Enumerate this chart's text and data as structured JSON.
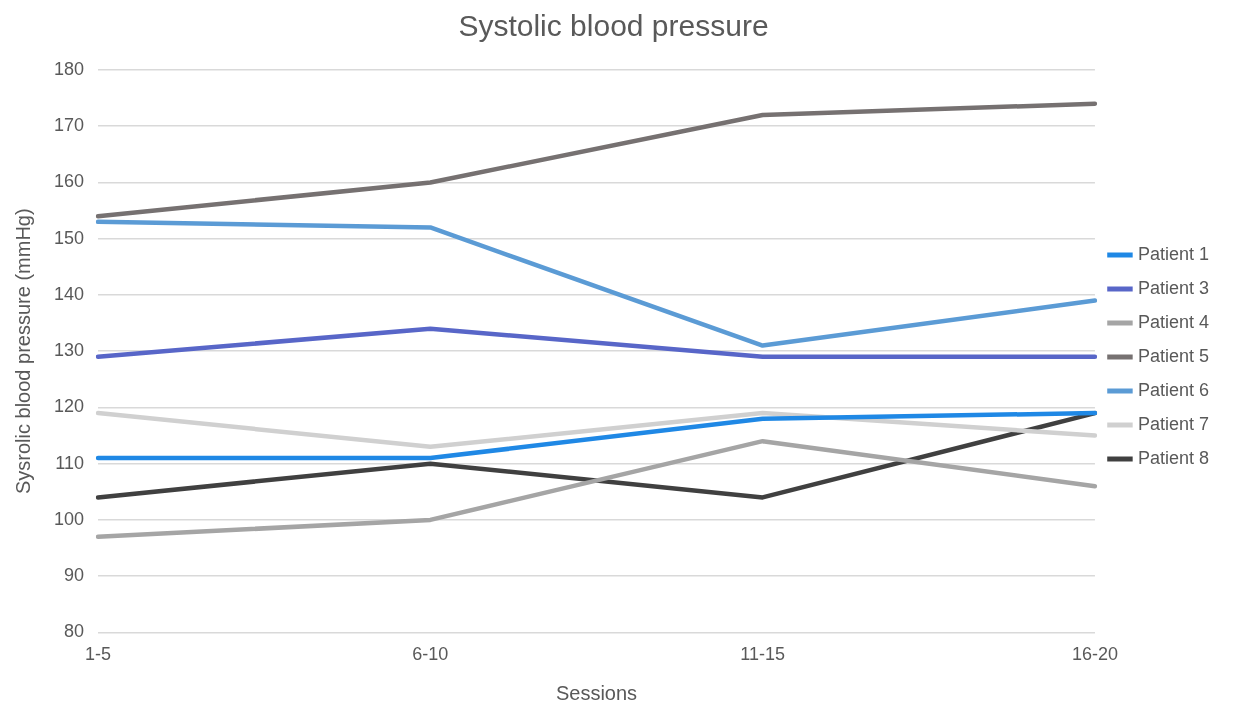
{
  "chart_data": {
    "type": "line",
    "title": "Systolic blood pressure",
    "xlabel": "Sessions",
    "ylabel": "Sysrolic blood pressure (mmHg)",
    "categories": [
      "1-5",
      "6-10",
      "11-15",
      "16-20"
    ],
    "series": [
      {
        "name": "Patient 1",
        "color": "#1f88e5",
        "values": [
          111,
          111,
          118,
          119
        ]
      },
      {
        "name": "Patient 3",
        "color": "#5866c8",
        "values": [
          129,
          134,
          129,
          129
        ]
      },
      {
        "name": "Patient 4",
        "color": "#a5a5a5",
        "values": [
          97,
          100,
          114,
          106
        ]
      },
      {
        "name": "Patient 5",
        "color": "#767171",
        "values": [
          154,
          160,
          172,
          174
        ]
      },
      {
        "name": "Patient 6",
        "color": "#5b9bd5",
        "values": [
          153,
          152,
          131,
          139
        ]
      },
      {
        "name": "Patient 7",
        "color": "#d0d0d0",
        "values": [
          119,
          113,
          119,
          115
        ]
      },
      {
        "name": "Patient 8",
        "color": "#404040",
        "values": [
          104,
          110,
          104,
          119
        ]
      }
    ],
    "ylim": [
      80,
      180
    ],
    "yticks": [
      80,
      90,
      100,
      110,
      120,
      130,
      140,
      150,
      160,
      170,
      180
    ],
    "grid": "y",
    "legend": "right",
    "marker": "none",
    "line_style": "solid"
  }
}
